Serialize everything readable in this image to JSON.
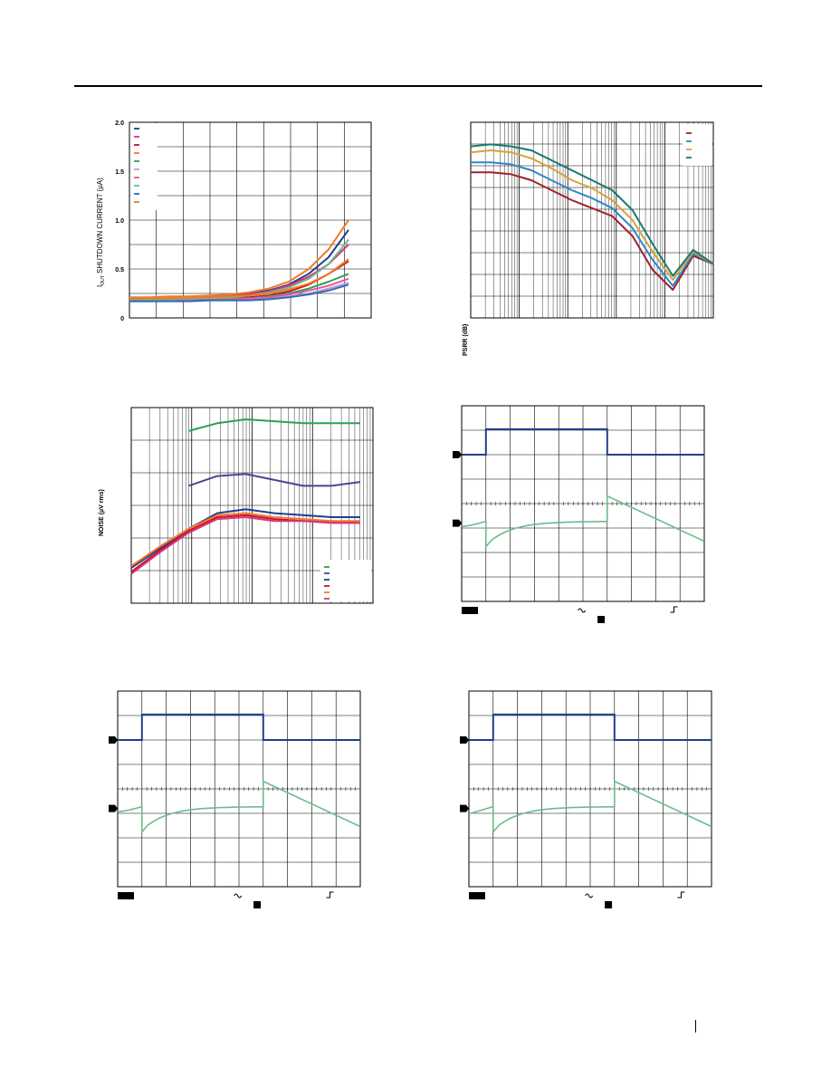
{
  "colors": {
    "navy": "#1f3f8f",
    "magenta": "#d8347e",
    "red": "#c8102e",
    "orange": "#f07a2a",
    "tan": "#d6a23c",
    "green": "#2e9f57",
    "pink": "#e05a9a",
    "violet": "#c497d6",
    "teal": "#157a70",
    "ltgreen": "#6dbb8c",
    "blue": "#2a6db8",
    "purple": "#5a3b9a",
    "maroon": "#a0202e",
    "sky": "#2f86c8"
  },
  "chart_data": [
    {
      "type": "line",
      "id": "shutdown",
      "ylabel": "IOUT SHUTDOWN CURRENT (µA)",
      "ylabel_main": "I",
      "ylabel_sub": "OUT",
      "ylabel_rest": " SHUTDOWN CURRENT (µA)",
      "ylim": [
        0,
        2.0
      ],
      "yticks": [
        "2.0",
        "1.5",
        "1.0",
        "0.5",
        "0"
      ],
      "grid": true,
      "legend_position": "top-left",
      "series": [
        {
          "color": "navy",
          "values": [
            0.2,
            0.2,
            0.2,
            0.21,
            0.22,
            0.23,
            0.25,
            0.28,
            0.34,
            0.45,
            0.62,
            0.9
          ]
        },
        {
          "color": "magenta",
          "values": [
            0.19,
            0.19,
            0.2,
            0.2,
            0.21,
            0.22,
            0.24,
            0.27,
            0.33,
            0.42,
            0.55,
            0.75
          ]
        },
        {
          "color": "red",
          "values": [
            0.18,
            0.18,
            0.19,
            0.19,
            0.2,
            0.2,
            0.21,
            0.23,
            0.27,
            0.34,
            0.45,
            0.58
          ]
        },
        {
          "color": "orange",
          "values": [
            0.21,
            0.21,
            0.22,
            0.22,
            0.23,
            0.24,
            0.26,
            0.3,
            0.37,
            0.5,
            0.7,
            1.0
          ]
        },
        {
          "color": "green",
          "values": [
            0.18,
            0.18,
            0.18,
            0.19,
            0.19,
            0.2,
            0.2,
            0.22,
            0.25,
            0.3,
            0.37,
            0.45
          ]
        },
        {
          "color": "violet",
          "values": [
            0.17,
            0.17,
            0.18,
            0.18,
            0.18,
            0.19,
            0.19,
            0.2,
            0.22,
            0.25,
            0.3,
            0.36
          ]
        },
        {
          "color": "pink",
          "values": [
            0.18,
            0.18,
            0.18,
            0.19,
            0.19,
            0.19,
            0.2,
            0.21,
            0.24,
            0.28,
            0.33,
            0.4
          ]
        },
        {
          "color": "ltgreen",
          "values": [
            0.19,
            0.19,
            0.19,
            0.2,
            0.2,
            0.21,
            0.23,
            0.26,
            0.31,
            0.4,
            0.55,
            0.8
          ]
        },
        {
          "color": "blue",
          "values": [
            0.17,
            0.17,
            0.17,
            0.17,
            0.18,
            0.18,
            0.18,
            0.19,
            0.21,
            0.24,
            0.28,
            0.34
          ]
        },
        {
          "color": "orange",
          "values": [
            0.2,
            0.2,
            0.2,
            0.21,
            0.21,
            0.22,
            0.23,
            0.25,
            0.29,
            0.35,
            0.45,
            0.6
          ]
        }
      ]
    },
    {
      "type": "line",
      "id": "psrr",
      "ylabel": "PSRR (dB)",
      "grid": true,
      "log_x": true,
      "legend_position": "top-right",
      "series": [
        {
          "color": "maroon",
          "values": [
            64,
            64,
            63,
            60,
            55,
            50,
            46,
            42,
            32,
            15,
            5,
            22,
            18
          ]
        },
        {
          "color": "sky",
          "values": [
            69,
            69,
            68,
            65,
            60,
            55,
            51,
            46,
            36,
            20,
            7,
            23,
            18
          ]
        },
        {
          "color": "tan",
          "values": [
            74,
            75,
            74,
            71,
            66,
            60,
            56,
            50,
            40,
            24,
            10,
            24,
            18
          ]
        },
        {
          "color": "teal",
          "values": [
            77,
            78,
            77,
            75,
            70,
            65,
            60,
            55,
            45,
            28,
            12,
            25,
            18
          ]
        }
      ]
    },
    {
      "type": "line",
      "id": "noise",
      "ylabel": "NOISE (µV rms)",
      "grid": true,
      "log_x": true,
      "legend_position": "bottom-right",
      "series": [
        {
          "color": "green",
          "values": [
            null,
            null,
            88,
            92,
            94,
            93,
            92,
            92,
            92
          ]
        },
        {
          "color": "purple",
          "values": [
            null,
            null,
            60,
            65,
            66,
            63,
            60,
            60,
            62
          ]
        },
        {
          "color": "navy",
          "values": [
            18,
            28,
            38,
            46,
            48,
            46,
            45,
            44,
            44
          ]
        },
        {
          "color": "red",
          "values": [
            16,
            27,
            37,
            44,
            45,
            43,
            42,
            42,
            41
          ]
        },
        {
          "color": "orange",
          "values": [
            19,
            29,
            38,
            45,
            46,
            44,
            43,
            42,
            42
          ]
        },
        {
          "color": "magenta",
          "values": [
            15,
            26,
            36,
            43,
            44,
            42,
            42,
            41,
            41
          ]
        }
      ]
    }
  ]
}
